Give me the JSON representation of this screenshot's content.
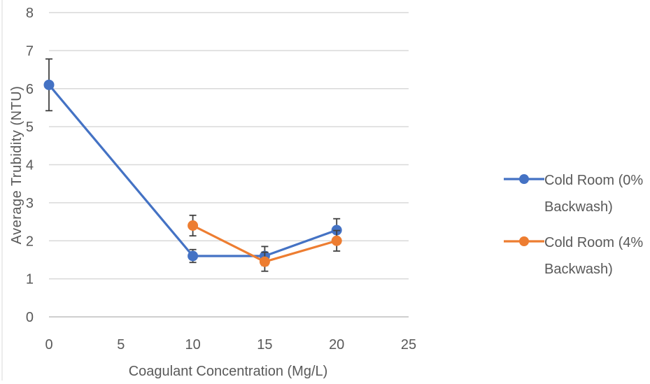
{
  "chart_data": {
    "type": "scatter",
    "title": "",
    "xlabel": "Coagulant Concentration (Mg/L)",
    "ylabel": "Average Trubidity (NTU)",
    "xlim": [
      0,
      25
    ],
    "ylim": [
      0,
      8
    ],
    "x_ticks": [
      0,
      5,
      10,
      15,
      20,
      25
    ],
    "y_ticks": [
      0,
      1,
      2,
      3,
      4,
      5,
      6,
      7,
      8
    ],
    "grid": "horizontal",
    "legend_position": "right",
    "series": [
      {
        "name_lines": [
          "Cold Room (0%",
          "Backwash)"
        ],
        "color": "#4472C4",
        "x": [
          0,
          10,
          15,
          20
        ],
        "y": [
          6.1,
          1.6,
          1.6,
          2.28
        ],
        "error": [
          0.68,
          0.17,
          0.25,
          0.3
        ]
      },
      {
        "name_lines": [
          "Cold Room (4%",
          "Backwash)"
        ],
        "color": "#ED7D31",
        "x": [
          10,
          15,
          20
        ],
        "y": [
          2.4,
          1.45,
          2.0
        ],
        "error": [
          0.27,
          0.25,
          0.27
        ]
      }
    ]
  }
}
